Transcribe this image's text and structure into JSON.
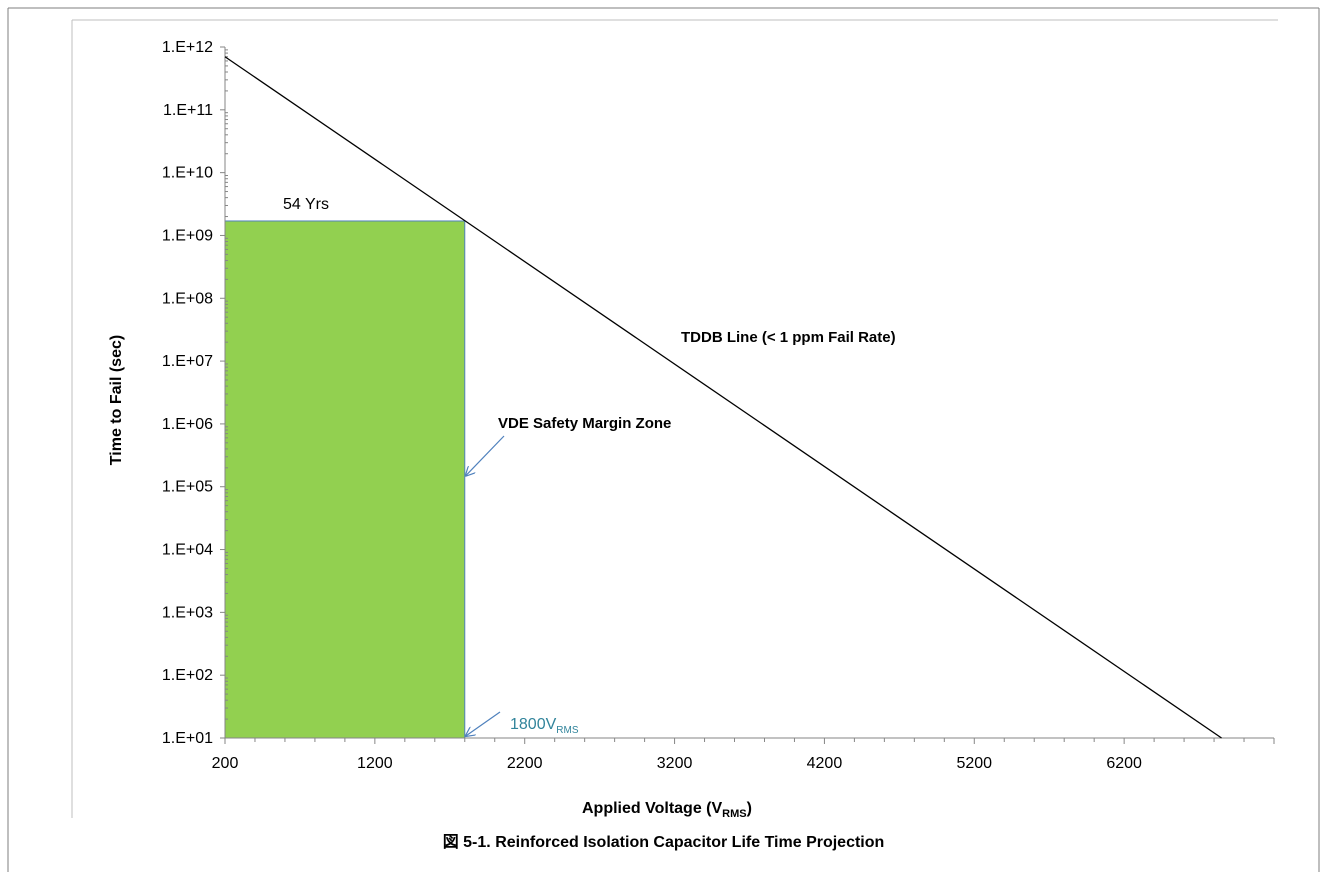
{
  "figure": {
    "caption_prefix": "図 5-1.",
    "caption_text": "Reinforced Isolation Capacitor Life Time Projection"
  },
  "chart_data": {
    "type": "line",
    "title": "",
    "xlabel": "Applied Voltage (V",
    "xlabel_sub": "RMS",
    "xlabel_end": ")",
    "ylabel": "Time to Fail (sec)",
    "x_scale": "linear",
    "y_scale": "log",
    "xlim": [
      200,
      7200
    ],
    "ylim": [
      10,
      1000000000000
    ],
    "x_ticks": [
      200,
      1200,
      2200,
      3200,
      4200,
      5200,
      6200
    ],
    "x_tick_labels": [
      "200",
      "1200",
      "2200",
      "3200",
      "4200",
      "5200",
      "6200"
    ],
    "y_ticks": [
      10,
      100,
      1000,
      10000,
      100000,
      1000000,
      10000000,
      100000000,
      1000000000,
      10000000000,
      100000000000,
      1000000000000
    ],
    "y_tick_labels": [
      "1.E+01",
      "1.E+02",
      "1.E+03",
      "1.E+04",
      "1.E+05",
      "1.E+06",
      "1.E+07",
      "1.E+08",
      "1.E+09",
      "1.E+10",
      "1.E+11",
      "1.E+12"
    ],
    "grid": false,
    "series": [
      {
        "name": "TDDB Line (< 1 ppm Fail Rate)",
        "x": [
          200,
          6850
        ],
        "y": [
          700000000000,
          10
        ],
        "color": "#000000"
      }
    ],
    "region": {
      "name": "VDE Safety Margin Zone",
      "x": [
        200,
        1800
      ],
      "y": [
        10,
        1700000000
      ],
      "fill": "#92D050",
      "edge": "#4F81BD"
    },
    "annotations": {
      "years_label": "54 Yrs",
      "tddb_label": "TDDB Line (< 1 ppm Fail Rate)",
      "vde_label": "VDE Safety Margin Zone",
      "voltage_label": "1800V",
      "voltage_label_sub": "RMS",
      "voltage_label_color": "#31849B",
      "arrow_color": "#4F81BD"
    }
  }
}
